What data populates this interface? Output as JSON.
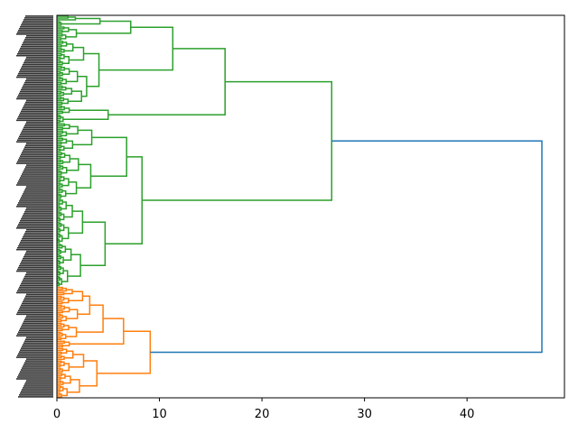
{
  "chart_data": {
    "type": "dendrogram",
    "orientation": "left",
    "title": "",
    "xlabel": "",
    "ylabel": "",
    "xlim": [
      0,
      49.5
    ],
    "xticks": [
      0,
      10,
      20,
      30,
      40
    ],
    "xtick_labels": [
      "0",
      "10",
      "20",
      "30",
      "40"
    ],
    "grid": false,
    "leaf_labels_legible": false,
    "colors": {
      "above_threshold": "#1f77b4",
      "cluster_1": "#2ca02c",
      "cluster_2": "#ff7f0e"
    },
    "tree": {
      "h": 47.3,
      "color": "#1f77b4",
      "children": [
        {
          "h": 26.8,
          "color": "#2ca02c",
          "children": [
            {
              "h": 16.4,
              "children": [
                {
                  "h": 11.3,
                  "children": [
                    {
                      "h": 7.2,
                      "children": [
                        {
                          "h": 4.2,
                          "children": [
                            {
                              "h": 1.8,
                              "n": 3
                            },
                            {
                              "h": 0.4,
                              "n": 3
                            }
                          ]
                        },
                        {
                          "h": 1.9,
                          "n": 8
                        }
                      ]
                    },
                    {
                      "h": 4.1,
                      "children": [
                        {
                          "h": 2.6,
                          "n": 14
                        },
                        {
                          "h": 2.9,
                          "children": [
                            {
                              "h": 2.0,
                              "n": 11
                            },
                            {
                              "h": 2.4,
                              "n": 11
                            }
                          ]
                        }
                      ]
                    }
                  ]
                },
                {
                  "h": 5.0,
                  "children": [
                    {
                      "h": 1.2,
                      "n": 5
                    },
                    {
                      "h": 0.6,
                      "n": 5
                    }
                  ]
                }
              ]
            },
            {
              "h": 8.3,
              "children": [
                {
                  "h": 6.8,
                  "children": [
                    {
                      "h": 3.4,
                      "n": 16
                    },
                    {
                      "h": 3.3,
                      "children": [
                        {
                          "h": 2.1,
                          "n": 13
                        },
                        {
                          "h": 1.9,
                          "n": 13
                        }
                      ]
                    }
                  ]
                },
                {
                  "h": 4.7,
                  "children": [
                    {
                      "h": 2.5,
                      "n": 25
                    },
                    {
                      "h": 2.3,
                      "n": 24
                    }
                  ]
                }
              ]
            }
          ]
        },
        {
          "h": 9.1,
          "color": "#ff7f0e",
          "children": [
            {
              "h": 6.5,
              "children": [
                {
                  "h": 4.5,
                  "children": [
                    {
                      "h": 3.2,
                      "children": [
                        {
                          "h": 2.5,
                          "n": 10
                        },
                        {
                          "h": 2.0,
                          "n": 10
                        }
                      ]
                    },
                    {
                      "h": 1.9,
                      "n": 10
                    }
                  ]
                },
                {
                  "h": 1.2,
                  "n": 4
                }
              ]
            },
            {
              "h": 3.9,
              "children": [
                {
                  "h": 2.6,
                  "n": 14
                },
                {
                  "h": 2.2,
                  "n": 14
                }
              ]
            }
          ]
        }
      ]
    }
  }
}
